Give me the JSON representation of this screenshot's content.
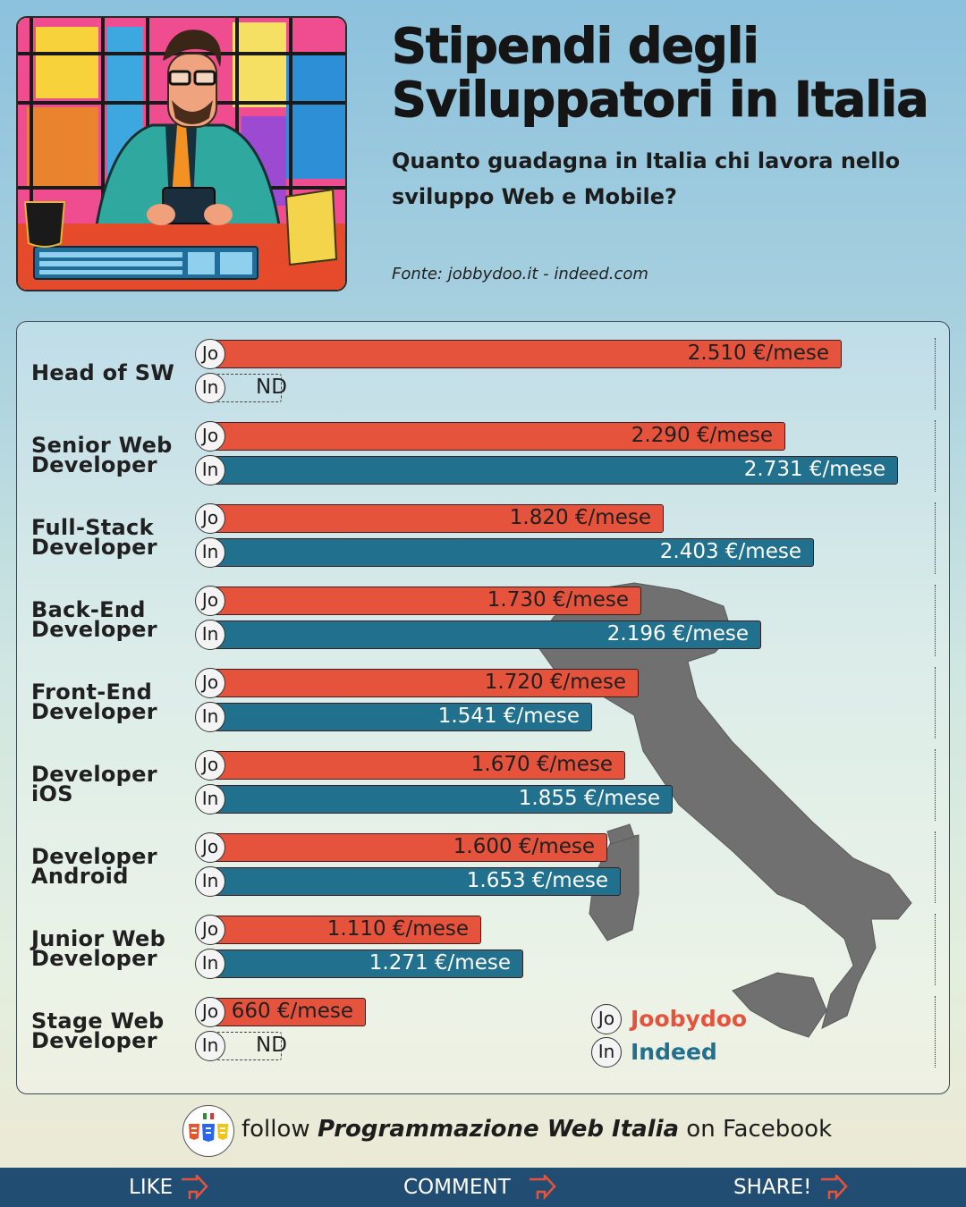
{
  "header": {
    "title_line1": "Stipendi degli",
    "title_line2": "Sviluppatori in Italia",
    "subtitle": "Quanto guadagna in Italia chi lavora nello sviluppo Web e Mobile?",
    "source": "Fonte: jobbydoo.it - indeed.com"
  },
  "colors": {
    "joobydoo": "#e6533c",
    "indeed": "#21708d",
    "bottom_bar": "#224d73"
  },
  "badges": {
    "jo": "Jo",
    "in": "In"
  },
  "chart_data": {
    "type": "bar",
    "orientation": "horizontal",
    "unit": "€/mese",
    "categories": [
      [
        "Head of SW"
      ],
      [
        "Senior Web",
        "Developer"
      ],
      [
        "Full-Stack",
        "Developer"
      ],
      [
        "Back-End",
        "Developer"
      ],
      [
        "Front-End",
        "Developer"
      ],
      [
        "Developer",
        "iOS"
      ],
      [
        "Developer",
        "Android"
      ],
      [
        "Junior Web",
        "Developer"
      ],
      [
        "Stage Web",
        "Developer"
      ]
    ],
    "series": [
      {
        "name": "Joobydoo",
        "badge": "Jo",
        "color": "#e6533c",
        "values": [
          2510,
          2290,
          1820,
          1730,
          1720,
          1670,
          1600,
          1110,
          660
        ],
        "labels": [
          "2.510 €/mese",
          "2.290 €/mese",
          "1.820 €/mese",
          "1.730 €/mese",
          "1.720 €/mese",
          "1.670 €/mese",
          "1.600 €/mese",
          "1.110 €/mese",
          "660 €/mese"
        ]
      },
      {
        "name": "Indeed",
        "badge": "In",
        "color": "#21708d",
        "values": [
          null,
          2731,
          2403,
          2196,
          1541,
          1855,
          1653,
          1271,
          null
        ],
        "labels": [
          "ND",
          "2.731 €/mese",
          "2.403 €/mese",
          "2.196 €/mese",
          "1.541 €/mese",
          "1.855 €/mese",
          "1.653 €/mese",
          "1.271 €/mese",
          "ND"
        ]
      }
    ],
    "missing_label": "ND",
    "xlim": [
      0,
      3000
    ],
    "legend_position": "bottom-right"
  },
  "footer": {
    "follow_prefix": "follow ",
    "follow_page": "Programmazione Web Italia",
    "follow_suffix": " on Facebook",
    "like": "LIKE",
    "comment": "COMMENT",
    "share": "SHARE!"
  }
}
